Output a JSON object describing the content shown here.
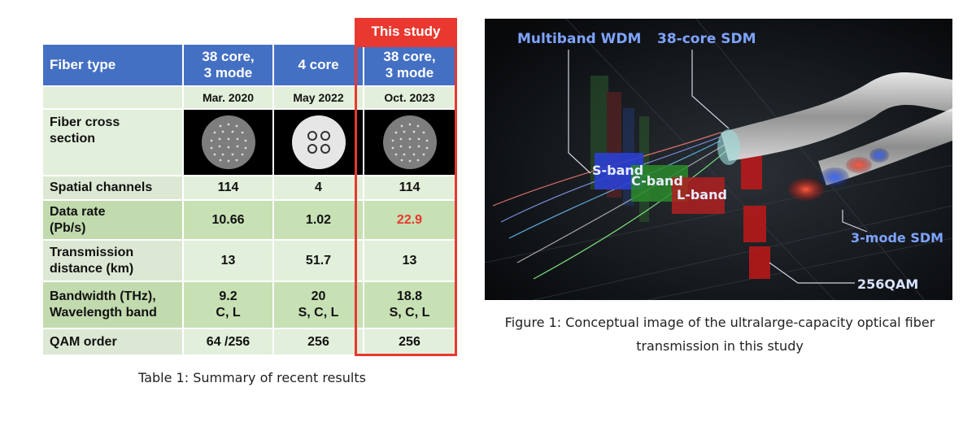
{
  "table": {
    "this_study_label": "This study",
    "header": [
      "Fiber type",
      "38 core,\n3 mode",
      "4 core",
      "38 core,\n3 mode"
    ],
    "dates": [
      "",
      "Mar. 2020",
      "May 2022",
      "Oct. 2023"
    ],
    "cross_section_label": "Fiber cross\nsection",
    "rows": [
      {
        "label": "Spatial channels",
        "values": [
          "114",
          "4",
          "114"
        ]
      },
      {
        "label": "Data rate\n(Pb/s)",
        "values": [
          "10.66",
          "1.02",
          "22.9"
        ]
      },
      {
        "label": "Transmission\ndistance (km)",
        "values": [
          "13",
          "51.7",
          "13"
        ]
      },
      {
        "label": "Bandwidth (THz),\nWavelength band",
        "values": [
          "9.2\nC, L",
          "20\nS, C, L",
          "18.8\nS, C, L"
        ]
      },
      {
        "label": "QAM order",
        "values": [
          "64 /256",
          "256",
          "256"
        ]
      }
    ],
    "caption": "Table 1: Summary of recent results"
  },
  "figure": {
    "labels": {
      "multiband": "Multiband WDM",
      "sdm38": "38-core SDM",
      "sband": "S-band",
      "cband": "C-band",
      "lband": "L-band",
      "mode3": "3-mode SDM",
      "qam": "256QAM"
    },
    "caption_line1": "Figure 1: Conceptual image of the ultralarge-capacity optical fiber",
    "caption_line2": "transmission in this study"
  },
  "colors": {
    "header_blue": "#4470c4",
    "highlight_red": "#e8382f",
    "row_light": "#e2efda",
    "row_dark": "#c7e0b4"
  }
}
